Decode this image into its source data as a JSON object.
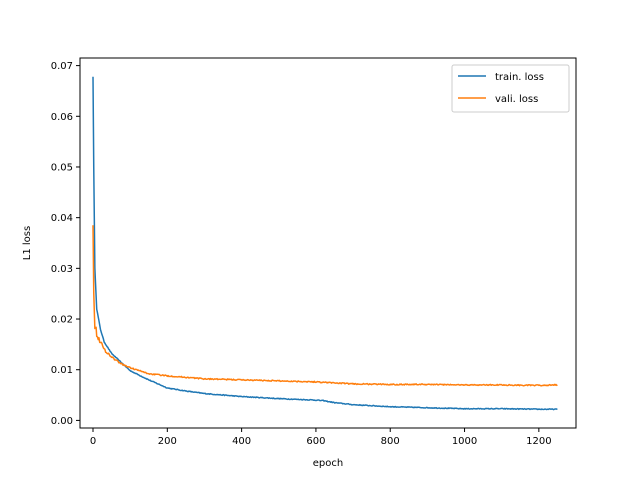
{
  "chart_data": {
    "type": "line",
    "xlabel": "epoch",
    "ylabel": "L1 loss",
    "xlim": [
      -35,
      1300
    ],
    "ylim": [
      -0.0015,
      0.0715
    ],
    "xticks": [
      0,
      200,
      400,
      600,
      800,
      1000,
      1200
    ],
    "yticks": [
      0.0,
      0.01,
      0.02,
      0.03,
      0.04,
      0.05,
      0.06,
      0.07
    ],
    "ytick_labels": [
      "0.00",
      "0.01",
      "0.02",
      "0.03",
      "0.04",
      "0.05",
      "0.06",
      "0.07"
    ],
    "grid": false,
    "legend_position": "top-right",
    "series": [
      {
        "name": "train. loss",
        "color": "#1f77b4",
        "x": [
          0,
          2,
          5,
          10,
          20,
          30,
          50,
          75,
          100,
          150,
          200,
          250,
          300,
          400,
          500,
          600,
          620,
          650,
          700,
          800,
          900,
          1000,
          1100,
          1200,
          1250
        ],
        "y": [
          0.0678,
          0.05,
          0.03,
          0.022,
          0.018,
          0.0155,
          0.0132,
          0.0115,
          0.0098,
          0.008,
          0.0064,
          0.0058,
          0.0053,
          0.0047,
          0.0043,
          0.004,
          0.0039,
          0.0035,
          0.0031,
          0.0027,
          0.0025,
          0.0023,
          0.0023,
          0.0022,
          0.0022
        ]
      },
      {
        "name": "vali. loss",
        "color": "#ff7f0e",
        "x": [
          0,
          2,
          5,
          10,
          20,
          30,
          50,
          75,
          100,
          150,
          200,
          250,
          300,
          400,
          500,
          600,
          650,
          700,
          800,
          900,
          1000,
          1100,
          1200,
          1250
        ],
        "y": [
          0.0385,
          0.026,
          0.019,
          0.017,
          0.0155,
          0.014,
          0.0125,
          0.0112,
          0.0104,
          0.0092,
          0.0088,
          0.0085,
          0.0082,
          0.008,
          0.0078,
          0.0076,
          0.0074,
          0.0072,
          0.0071,
          0.0071,
          0.007,
          0.007,
          0.0069,
          0.007
        ]
      }
    ]
  }
}
